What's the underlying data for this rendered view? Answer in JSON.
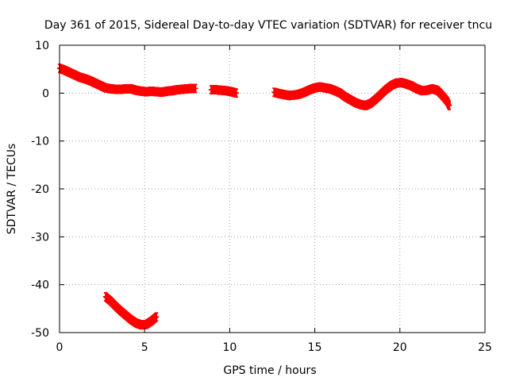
{
  "chart_data": {
    "type": "scatter",
    "title": "Day 361 of 2015, Sidereal Day-to-day VTEC variation (SDTVAR) for receiver tncu",
    "xlabel": "GPS time / hours",
    "ylabel": "SDTVAR / TECUs",
    "xlim": [
      0,
      25
    ],
    "ylim": [
      -50,
      10
    ],
    "xticks": [
      0,
      5,
      10,
      15,
      20,
      25
    ],
    "yticks": [
      -50,
      -40,
      -30,
      -20,
      -10,
      0,
      10
    ],
    "grid": true,
    "series": [
      {
        "name": "SDTVAR",
        "color": "#ff0000",
        "points": [
          [
            0.0,
            5.2
          ],
          [
            0.3,
            4.8
          ],
          [
            0.6,
            4.3
          ],
          [
            0.9,
            3.8
          ],
          [
            1.2,
            3.3
          ],
          [
            1.5,
            3.0
          ],
          [
            1.8,
            2.6
          ],
          [
            2.1,
            2.1
          ],
          [
            2.4,
            1.6
          ],
          [
            2.7,
            1.1
          ],
          [
            3.0,
            0.9
          ],
          [
            3.3,
            0.8
          ],
          [
            3.6,
            0.8
          ],
          [
            3.9,
            0.9
          ],
          [
            4.2,
            0.9
          ],
          [
            4.5,
            0.6
          ],
          [
            4.8,
            0.4
          ],
          [
            5.1,
            0.3
          ],
          [
            5.4,
            0.4
          ],
          [
            5.7,
            0.3
          ],
          [
            6.0,
            0.2
          ],
          [
            6.3,
            0.4
          ],
          [
            6.6,
            0.5
          ],
          [
            6.9,
            0.7
          ],
          [
            7.2,
            0.8
          ],
          [
            7.5,
            0.9
          ],
          [
            7.8,
            1.0
          ],
          [
            8.0,
            1.0
          ],
          [
            8.9,
            0.7
          ],
          [
            9.2,
            0.7
          ],
          [
            9.5,
            0.6
          ],
          [
            9.8,
            0.5
          ],
          [
            10.1,
            0.3
          ],
          [
            10.4,
            0.0
          ],
          [
            12.6,
            0.2
          ],
          [
            12.9,
            -0.1
          ],
          [
            13.2,
            -0.3
          ],
          [
            13.5,
            -0.5
          ],
          [
            13.8,
            -0.4
          ],
          [
            14.1,
            -0.2
          ],
          [
            14.4,
            0.2
          ],
          [
            14.7,
            0.7
          ],
          [
            15.0,
            1.1
          ],
          [
            15.3,
            1.3
          ],
          [
            15.6,
            1.1
          ],
          [
            15.9,
            0.9
          ],
          [
            16.2,
            0.5
          ],
          [
            16.5,
            0.0
          ],
          [
            16.8,
            -0.8
          ],
          [
            17.1,
            -1.4
          ],
          [
            17.4,
            -2.0
          ],
          [
            17.7,
            -2.4
          ],
          [
            18.0,
            -2.6
          ],
          [
            18.3,
            -2.1
          ],
          [
            18.6,
            -1.2
          ],
          [
            18.9,
            -0.2
          ],
          [
            19.2,
            0.8
          ],
          [
            19.5,
            1.6
          ],
          [
            19.8,
            2.1
          ],
          [
            20.1,
            2.2
          ],
          [
            20.4,
            1.9
          ],
          [
            20.7,
            1.5
          ],
          [
            21.0,
            0.9
          ],
          [
            21.3,
            0.5
          ],
          [
            21.6,
            0.6
          ],
          [
            21.9,
            0.9
          ],
          [
            22.2,
            0.6
          ],
          [
            22.4,
            -0.1
          ],
          [
            22.6,
            -0.9
          ],
          [
            22.8,
            -1.8
          ],
          [
            22.9,
            -2.6
          ],
          [
            2.7,
            -42.5
          ],
          [
            3.0,
            -43.4
          ],
          [
            3.3,
            -44.5
          ],
          [
            3.6,
            -45.5
          ],
          [
            3.9,
            -46.4
          ],
          [
            4.2,
            -47.3
          ],
          [
            4.5,
            -48.0
          ],
          [
            4.8,
            -48.4
          ],
          [
            5.1,
            -48.3
          ],
          [
            5.4,
            -47.6
          ],
          [
            5.7,
            -46.7
          ]
        ]
      }
    ]
  }
}
